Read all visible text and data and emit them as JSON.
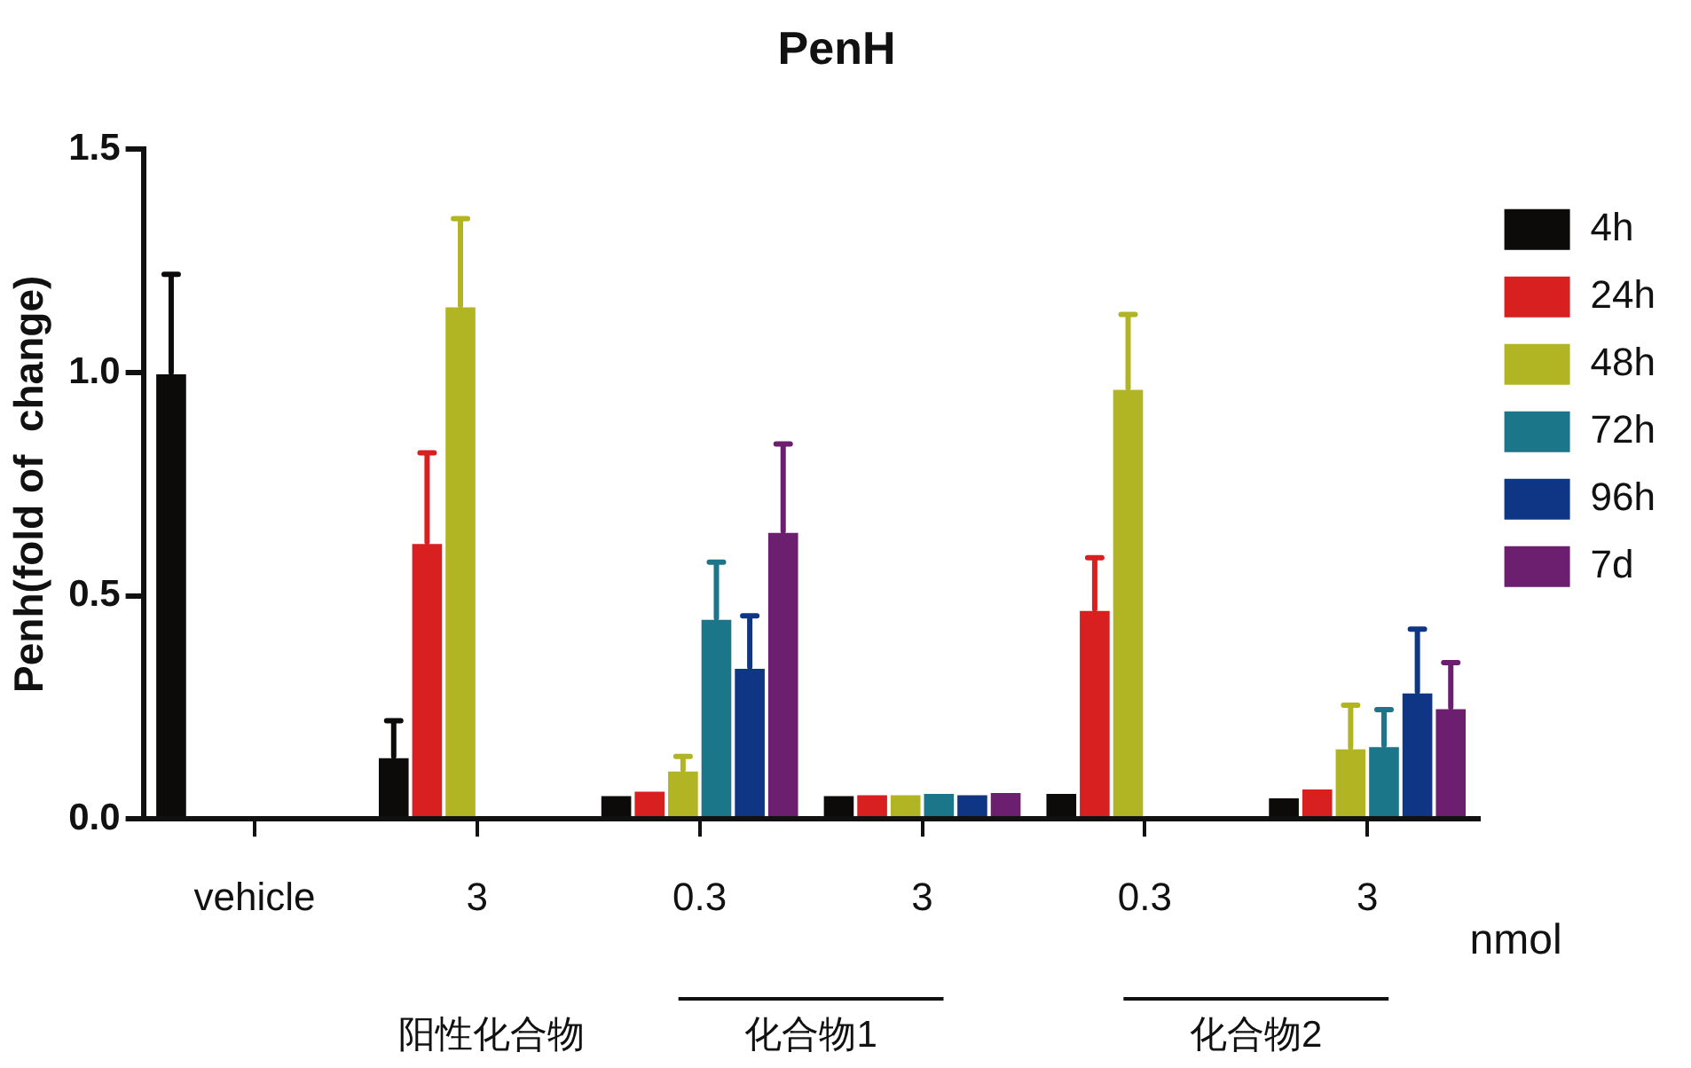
{
  "chart_data": {
    "type": "bar",
    "title": "PenH",
    "ylabel": "Penh(fold of  change)",
    "categories": [
      "vehicle",
      "3",
      "0.3",
      "3",
      "0.3",
      "3"
    ],
    "series": [
      {
        "name": "4h",
        "color": "#0d0a0a",
        "values": [
          1.0,
          0.14,
          0.055,
          0.055,
          0.06,
          0.05
        ],
        "errors": [
          [
            1.0,
            1.22
          ],
          [
            0.14,
            0.22
          ],
          null,
          null,
          null,
          null
        ]
      },
      {
        "name": "24h",
        "color": "#d82020",
        "values": [
          null,
          0.62,
          0.065,
          0.057,
          0.47,
          0.07
        ],
        "errors": [
          null,
          [
            0.62,
            0.82
          ],
          null,
          null,
          [
            0.47,
            0.585
          ],
          null
        ]
      },
      {
        "name": "48h",
        "color": "#b2b523",
        "values": [
          null,
          1.15,
          0.11,
          0.057,
          0.965,
          0.16
        ],
        "errors": [
          null,
          [
            1.15,
            1.345
          ],
          [
            0.11,
            0.14
          ],
          null,
          [
            0.965,
            1.13
          ],
          [
            0.16,
            0.255
          ]
        ]
      },
      {
        "name": "72h",
        "color": "#1b7689",
        "values": [
          null,
          null,
          0.45,
          0.06,
          null,
          0.165
        ],
        "errors": [
          null,
          null,
          [
            0.45,
            0.575
          ],
          null,
          null,
          [
            0.165,
            0.245
          ]
        ]
      },
      {
        "name": "96h",
        "color": "#0f3585",
        "values": [
          null,
          null,
          0.34,
          0.057,
          null,
          0.285
        ],
        "errors": [
          null,
          null,
          [
            0.34,
            0.455
          ],
          null,
          null,
          [
            0.285,
            0.425
          ]
        ]
      },
      {
        "name": "7d",
        "color": "#6b1f6e",
        "values": [
          null,
          null,
          0.645,
          0.062,
          null,
          0.25
        ],
        "errors": [
          null,
          null,
          [
            0.645,
            0.84
          ],
          null,
          null,
          [
            0.25,
            0.35
          ]
        ]
      }
    ],
    "ylim": [
      0,
      1.5
    ],
    "yticks": [
      {
        "value": 0,
        "label": "0.0"
      },
      {
        "value": 0.5,
        "label": "0.5"
      },
      {
        "value": 1,
        "label": "1.0"
      },
      {
        "value": 1.5,
        "label": "1.5"
      }
    ],
    "grid": false,
    "legend": "right",
    "annotations": [
      "nmol",
      "阳性化合物",
      "化合物1",
      "化合物2"
    ]
  }
}
